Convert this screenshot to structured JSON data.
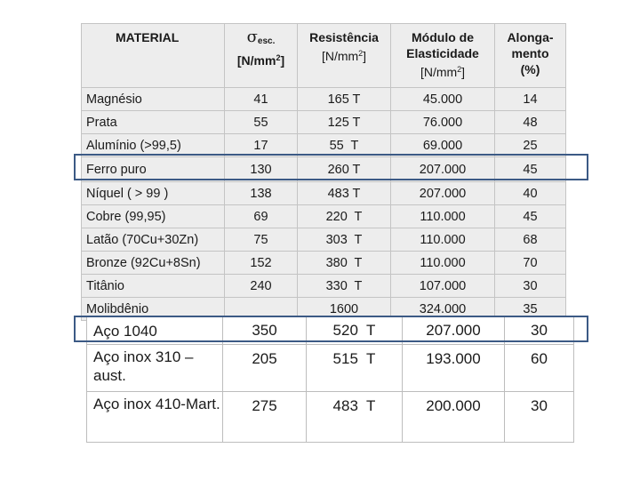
{
  "columns": {
    "material": "MATERIAL",
    "sigma": "σ",
    "sigma_sub": "esc.",
    "sigma_unit": "[N/mm",
    "sigma_unit_sup": "2",
    "sigma_unit_end": "]",
    "resist": "Resistência",
    "resist_unit": "[N/mm",
    "resist_unit_sup": "2",
    "resist_unit_end": "]",
    "modulo_line1": "Módulo de",
    "modulo_line2": "Elasticidade",
    "modulo_unit": "[N/mm",
    "modulo_unit_sup": "2",
    "modulo_unit_end": "]",
    "along_line1": "Alonga-",
    "along_line2": "mento",
    "along_unit": "(%)"
  },
  "rows": [
    {
      "material": "Magnésio",
      "sigma": "41",
      "resist": "165 T",
      "modulo": "45.000",
      "along": "14"
    },
    {
      "material": "Prata",
      "sigma": "55",
      "resist": "125 T",
      "modulo": "76.000",
      "along": "48"
    },
    {
      "material": "Alumínio (>99,5)",
      "sigma": "17",
      "resist": "55  T",
      "modulo": "69.000",
      "along": "25"
    },
    {
      "material": "Ferro puro",
      "sigma": "130",
      "resist": "260 T",
      "modulo": "207.000",
      "along": "45"
    },
    {
      "material": "Níquel ( > 99 )",
      "sigma": "138",
      "resist": "483 T",
      "modulo": "207.000",
      "along": "40"
    },
    {
      "material": "Cobre (99,95)",
      "sigma": "69",
      "resist": "220  T",
      "modulo": "110.000",
      "along": "45"
    },
    {
      "material": "Latão (70Cu+30Zn)",
      "sigma": "75",
      "resist": "303  T",
      "modulo": "110.000",
      "along": "68"
    },
    {
      "material": "Bronze (92Cu+8Sn)",
      "sigma": "152",
      "resist": "380  T",
      "modulo": "110.000",
      "along": "70"
    },
    {
      "material": "Titânio",
      "sigma": "240",
      "resist": "330  T",
      "modulo": "107.000",
      "along": "30"
    },
    {
      "material": "Molibdênio",
      "sigma": "",
      "resist": "1600",
      "modulo": "324.000",
      "along": "35"
    }
  ],
  "extra_rows": [
    {
      "material": "Aço 1040",
      "sigma": "350",
      "resist": "520  T",
      "modulo": "207.000",
      "along": "30"
    },
    {
      "material": "Aço inox 310 – aust.",
      "sigma": "205",
      "resist": "515  T",
      "modulo": "193.000",
      "along": "60"
    },
    {
      "material": "Aço inox 410-Mart.",
      "sigma": "275",
      "resist": "483  T",
      "modulo": "200.000",
      "along": "30"
    }
  ]
}
